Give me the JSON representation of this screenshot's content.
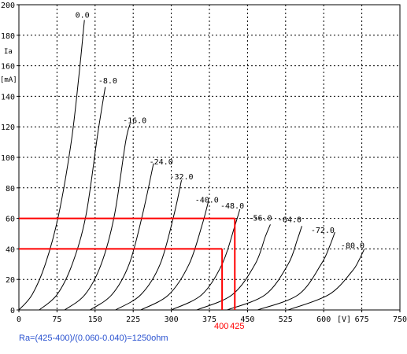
{
  "chart_data": {
    "type": "line",
    "title": "",
    "ylabel_parts": [
      "Ia",
      "[mA]"
    ],
    "xunit": "[V]",
    "xlim": [
      0,
      750
    ],
    "ylim": [
      0,
      200
    ],
    "xticks": [
      "0",
      "75",
      "150",
      "225",
      "300",
      "375",
      "450",
      "525",
      "600",
      "675",
      "750"
    ],
    "yticks": [
      "0",
      "20",
      "40",
      "60",
      "80",
      "100",
      "120",
      "140",
      "160",
      "180",
      "200"
    ],
    "grid": true,
    "legend": "none",
    "series": [
      {
        "name": "0.0",
        "start_v": 0,
        "label": {
          "x": 125,
          "y": 193
        },
        "points": [
          [
            0,
            0
          ],
          [
            26,
            10
          ],
          [
            52,
            30
          ],
          [
            78,
            62
          ],
          [
            103,
            110
          ],
          [
            118,
            153
          ],
          [
            129,
            190
          ]
        ]
      },
      {
        "name": "-8.0",
        "start_v": 40,
        "label": {
          "x": 175,
          "y": 150
        },
        "points": [
          [
            40,
            0
          ],
          [
            75,
            10
          ],
          [
            105,
            30
          ],
          [
            132,
            62
          ],
          [
            155,
            115
          ],
          [
            170,
            146
          ]
        ]
      },
      {
        "name": "-16.0",
        "start_v": 90,
        "label": {
          "x": 228,
          "y": 124
        },
        "points": [
          [
            90,
            0
          ],
          [
            130,
            10
          ],
          [
            162,
            30
          ],
          [
            188,
            62
          ],
          [
            210,
            110
          ],
          [
            219,
            122
          ]
        ]
      },
      {
        "name": "-24.0",
        "start_v": 140,
        "label": {
          "x": 280,
          "y": 97
        },
        "points": [
          [
            140,
            0
          ],
          [
            183,
            10
          ],
          [
            217,
            30
          ],
          [
            243,
            62
          ],
          [
            265,
            96
          ]
        ]
      },
      {
        "name": "-32.0",
        "start_v": 190,
        "label": {
          "x": 320,
          "y": 87
        },
        "points": [
          [
            190,
            0
          ],
          [
            240,
            10
          ],
          [
            278,
            30
          ],
          [
            305,
            62
          ],
          [
            320,
            85
          ]
        ]
      },
      {
        "name": "-40.0",
        "start_v": 240,
        "label": {
          "x": 370,
          "y": 72
        },
        "points": [
          [
            240,
            0
          ],
          [
            295,
            10
          ],
          [
            335,
            30
          ],
          [
            360,
            55
          ],
          [
            373,
            71
          ]
        ]
      },
      {
        "name": "-48.0",
        "start_v": 300,
        "label": {
          "x": 420,
          "y": 68
        },
        "points": [
          [
            300,
            0
          ],
          [
            360,
            10
          ],
          [
            400,
            30
          ],
          [
            425,
            55
          ],
          [
            435,
            66
          ]
        ]
      },
      {
        "name": "-56.0",
        "start_v": 350,
        "label": {
          "x": 475,
          "y": 60
        },
        "points": [
          [
            350,
            0
          ],
          [
            420,
            10
          ],
          [
            465,
            30
          ],
          [
            485,
            48
          ],
          [
            495,
            56
          ]
        ]
      },
      {
        "name": "-64.0",
        "start_v": 410,
        "label": {
          "x": 533,
          "y": 59
        },
        "points": [
          [
            410,
            0
          ],
          [
            485,
            10
          ],
          [
            530,
            30
          ],
          [
            548,
            46
          ],
          [
            557,
            55
          ]
        ]
      },
      {
        "name": "-72.0",
        "start_v": 470,
        "label": {
          "x": 598,
          "y": 52
        },
        "points": [
          [
            470,
            0
          ],
          [
            550,
            10
          ],
          [
            595,
            30
          ],
          [
            612,
            42
          ],
          [
            622,
            51
          ]
        ]
      },
      {
        "name": "-80.0",
        "start_v": 530,
        "label": {
          "x": 657,
          "y": 42
        },
        "points": [
          [
            530,
            0
          ],
          [
            610,
            10
          ],
          [
            655,
            25
          ],
          [
            670,
            33
          ],
          [
            680,
            40
          ]
        ]
      }
    ],
    "annotations": {
      "op_points": [
        {
          "v": 400,
          "i": 40
        },
        {
          "v": 425,
          "i": 60
        }
      ],
      "labels": [
        "400",
        "425"
      ],
      "formula": "Ra=(425-400)/(0.060-0.040)=1250ohm"
    },
    "colors": {
      "curve": "#000000",
      "grid": "#000000",
      "annotation": "#ff0000",
      "formula": "#2a52d0"
    }
  }
}
